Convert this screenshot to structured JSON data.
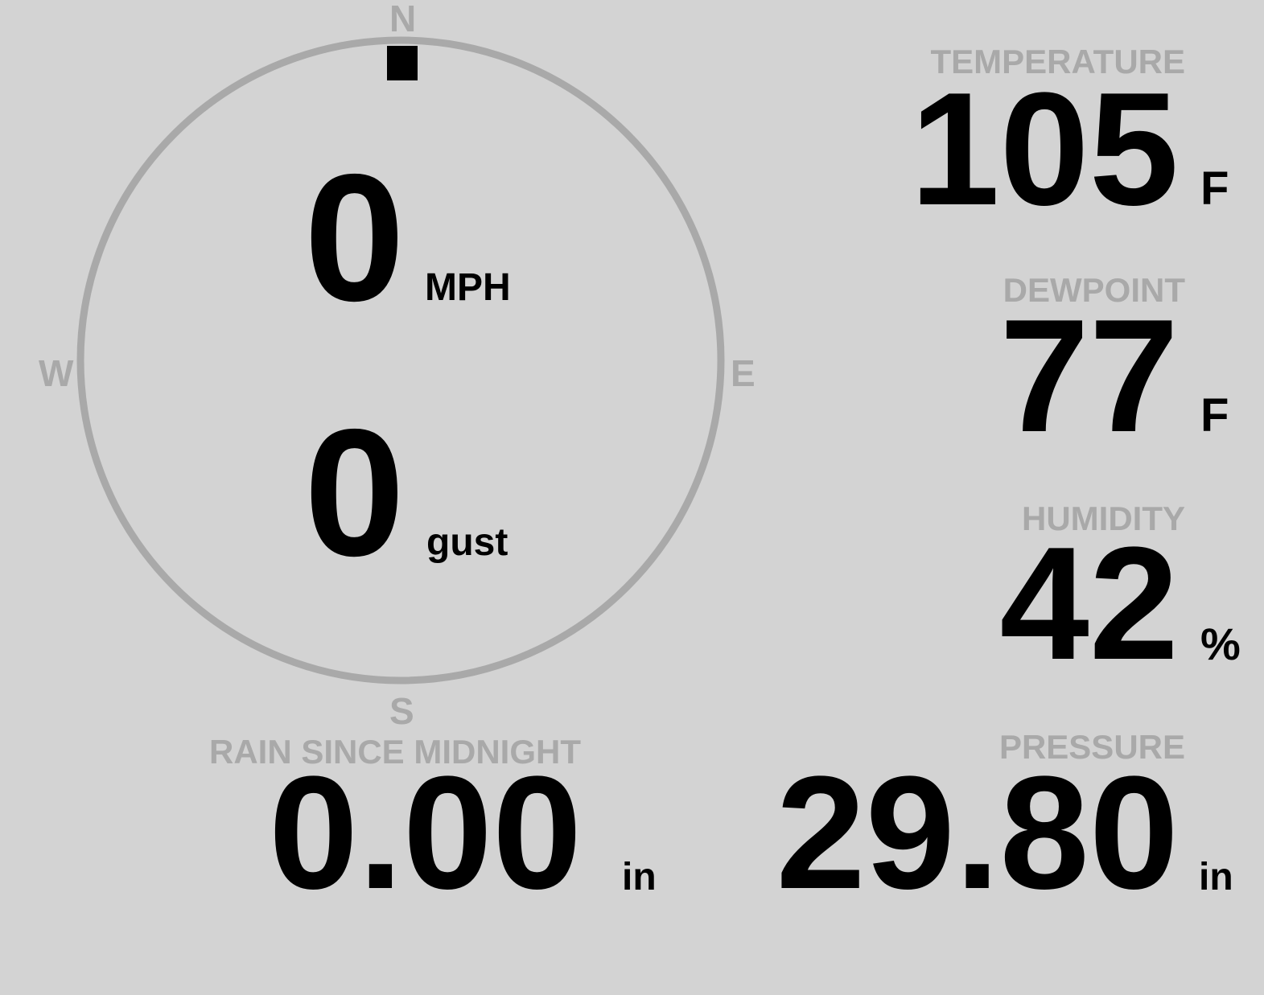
{
  "wind": {
    "compass": {
      "n": "N",
      "e": "E",
      "s": "S",
      "w": "W"
    },
    "direction_deg": 0,
    "speed": "0",
    "speed_unit": "MPH",
    "gust": "0",
    "gust_unit": "gust"
  },
  "rain": {
    "label": "RAIN SINCE MIDNIGHT",
    "value": "0.00",
    "unit": "in"
  },
  "temperature": {
    "label": "TEMPERATURE",
    "value": "105",
    "unit": "F"
  },
  "dewpoint": {
    "label": "DEWPOINT",
    "value": "77",
    "unit": "F"
  },
  "humidity": {
    "label": "HUMIDITY",
    "value": "42",
    "unit": "%"
  },
  "pressure": {
    "label": "PRESSURE",
    "value": "29.80",
    "unit": "in"
  },
  "colors": {
    "background": "#d3d3d3",
    "label": "#a9a9a9",
    "value": "#000000"
  }
}
